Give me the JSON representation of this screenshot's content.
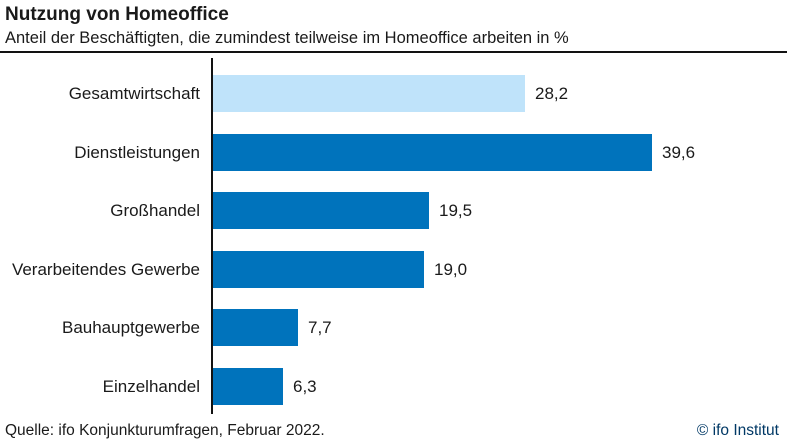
{
  "header": {
    "title": "Nutzung von Homeoffice",
    "subtitle": "Anteil der Beschäftigten, die zumindest teilweise im Homeoffice arbeiten in %"
  },
  "chart_data": {
    "type": "bar",
    "orientation": "horizontal",
    "title": "Nutzung von Homeoffice",
    "subtitle": "Anteil der Beschäftigten, die zumindest teilweise im Homeoffice arbeiten in %",
    "categories": [
      "Gesamtwirtschaft",
      "Dienstleistungen",
      "Großhandel",
      "Verarbeitendes Gewerbe",
      "Bauhauptgewerbe",
      "Einzelhandel"
    ],
    "values": [
      28.2,
      39.6,
      19.5,
      19.0,
      7.7,
      6.3
    ],
    "value_labels": [
      "28,2",
      "39,6",
      "19,5",
      "19,0",
      "7,7",
      "6,3"
    ],
    "bar_colors": [
      "#bfe3fa",
      "#0073bc",
      "#0073bc",
      "#0073bc",
      "#0073bc",
      "#0073bc"
    ],
    "xlabel": "",
    "ylabel": "",
    "xlim": [
      0,
      52
    ],
    "grid": false,
    "legend": null,
    "unit": "%"
  },
  "colors": {
    "bar_primary": "#0073bc",
    "bar_highlight": "#bfe3fa",
    "axis": "#121212",
    "copyright_text": "#003865"
  },
  "footer": {
    "source": "Quelle: ifo Konjunkturumfragen, Februar 2022.",
    "copyright": "© ifo Institut"
  }
}
